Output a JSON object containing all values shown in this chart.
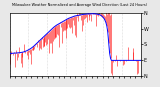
{
  "title": "Milwaukee Weather Normalized and Average Wind Direction (Last 24 Hours)",
  "bg_color": "#e8e8e8",
  "plot_bg": "#ffffff",
  "red_color": "#ff0000",
  "blue_color": "#0000ff",
  "grid_color": "#aaaaaa",
  "ylim": [
    0,
    360
  ],
  "yticks": [
    0,
    90,
    180,
    270,
    360
  ],
  "ytick_labels": [
    "N",
    "E",
    "S",
    "W",
    "N"
  ],
  "n_points": 144,
  "raw_data": [
    130,
    125,
    128,
    132,
    120,
    135,
    118,
    125,
    130,
    128,
    122,
    130,
    125,
    132,
    128,
    135,
    125,
    130,
    132,
    120,
    128,
    135,
    125,
    130,
    145,
    150,
    148,
    155,
    160,
    158,
    165,
    155,
    160,
    162,
    155,
    158,
    165,
    170,
    168,
    175,
    175,
    180,
    178,
    185,
    190,
    185,
    195,
    200,
    210,
    215,
    220,
    225,
    230,
    235,
    240,
    245,
    250,
    255,
    255,
    260,
    265,
    265,
    270,
    275,
    270,
    280,
    275,
    280,
    285,
    285,
    290,
    295,
    300,
    305,
    310,
    315,
    310,
    315,
    320,
    320,
    325,
    325,
    330,
    335,
    340,
    340,
    345,
    345,
    350,
    350,
    355,
    355,
    360,
    358,
    355,
    350,
    345,
    340,
    350,
    355,
    360,
    360,
    355,
    350,
    345,
    350,
    355,
    360,
    355,
    350,
    355,
    40,
    60,
    80,
    90,
    85,
    90,
    95,
    90,
    88,
    85,
    88,
    90,
    92,
    90,
    90,
    88,
    85,
    88,
    90,
    90,
    90,
    88,
    90,
    88,
    90,
    90,
    88,
    85,
    88,
    85,
    88,
    90,
    88
  ],
  "spike_magnitude": 80,
  "smooth_data": [
    128,
    128,
    128,
    129,
    129,
    130,
    130,
    130,
    131,
    131,
    132,
    132,
    133,
    134,
    135,
    136,
    138,
    140,
    142,
    144,
    147,
    150,
    153,
    156,
    160,
    164,
    168,
    173,
    178,
    183,
    188,
    193,
    198,
    203,
    208,
    213,
    218,
    223,
    228,
    233,
    238,
    243,
    248,
    253,
    258,
    263,
    268,
    273,
    278,
    282,
    286,
    290,
    293,
    296,
    299,
    302,
    305,
    308,
    311,
    314,
    317,
    320,
    323,
    326,
    329,
    331,
    333,
    335,
    337,
    339,
    341,
    343,
    344,
    345,
    346,
    347,
    348,
    349,
    350,
    351,
    352,
    353,
    353,
    354,
    354,
    355,
    355,
    355,
    355,
    356,
    356,
    356,
    356,
    356,
    355,
    354,
    353,
    352,
    350,
    348,
    345,
    340,
    335,
    328,
    318,
    305,
    285,
    250,
    190,
    130,
    100,
    88,
    88,
    88,
    88,
    88,
    88,
    88,
    88,
    88,
    88,
    88,
    88,
    88,
    88,
    88,
    88,
    88,
    88,
    88,
    88,
    88,
    88,
    88,
    88,
    88,
    88,
    88,
    88,
    88,
    88,
    88,
    88,
    88
  ]
}
